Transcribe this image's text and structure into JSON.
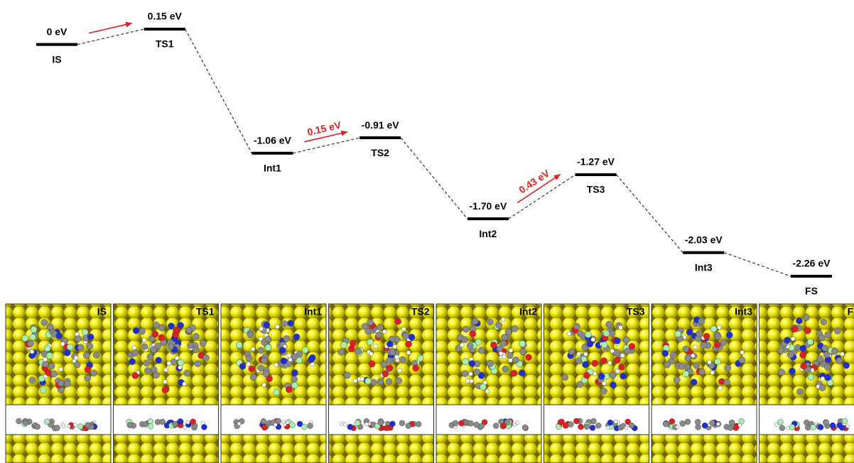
{
  "chart_data": {
    "type": "energy-profile",
    "categories": [
      "IS",
      "TS1",
      "Int1",
      "TS2",
      "Int2",
      "TS3",
      "Int3",
      "FS"
    ],
    "values": [
      0,
      0.15,
      -1.06,
      -0.91,
      -1.7,
      -1.27,
      -2.03,
      -2.26
    ],
    "value_labels": [
      "0 eV",
      "0.15 eV",
      "-1.06 eV",
      "-0.91 eV",
      "-1.70 eV",
      "-1.27 eV",
      "-2.03 eV",
      "-2.26 eV"
    ],
    "barriers": [
      0.15,
      null,
      0.15,
      null,
      0.43,
      null,
      null
    ],
    "barrier_labels": [
      null,
      null,
      "0.15 eV",
      null,
      "0.43 eV",
      null,
      null
    ],
    "color": "#000000",
    "barrier_color": "#e02020"
  }
}
